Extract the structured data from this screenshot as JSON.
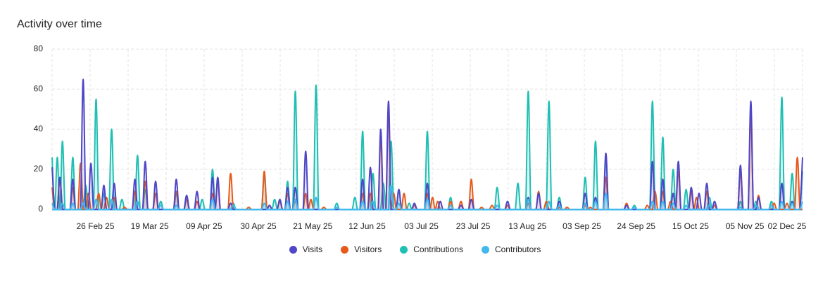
{
  "chart_data": {
    "type": "area",
    "title": "Activity over time",
    "xlabel": "",
    "ylabel": "",
    "ylim": [
      0,
      80
    ],
    "y_ticks": [
      0,
      20,
      40,
      60,
      80
    ],
    "x_tick_labels": [
      "26 Feb 25",
      "19 Mar 25",
      "09 Apr 25",
      "30 Apr 25",
      "21 May 25",
      "12 Jun 25",
      "03 Jul 25",
      "23 Jul 25",
      "13 Aug 25",
      "03 Sep 25",
      "24 Sep 25",
      "15 Oct 25",
      "05 Nov 25",
      "02 Dec 25"
    ],
    "day_range": [
      0,
      290
    ],
    "x_tick_days": [
      14,
      35,
      56,
      77,
      98,
      119,
      140,
      160,
      181,
      202,
      223,
      244,
      265,
      292
    ],
    "legend_position": "bottom",
    "series": [
      {
        "name": "Contributions",
        "color": "#1fbfb3",
        "peaks": [
          [
            0,
            26
          ],
          [
            2,
            26
          ],
          [
            4,
            34
          ],
          [
            8,
            26
          ],
          [
            13,
            12
          ],
          [
            17,
            55
          ],
          [
            20,
            8
          ],
          [
            23,
            40
          ],
          [
            27,
            5
          ],
          [
            33,
            27
          ],
          [
            36,
            10
          ],
          [
            42,
            4
          ],
          [
            48,
            8
          ],
          [
            52,
            7
          ],
          [
            58,
            5
          ],
          [
            62,
            20
          ],
          [
            70,
            3
          ],
          [
            82,
            17
          ],
          [
            86,
            5
          ],
          [
            91,
            14
          ],
          [
            94,
            59
          ],
          [
            102,
            62
          ],
          [
            110,
            3
          ],
          [
            117,
            6
          ],
          [
            120,
            39
          ],
          [
            124,
            18
          ],
          [
            128,
            13
          ],
          [
            131,
            34
          ],
          [
            134,
            10
          ],
          [
            138,
            3
          ],
          [
            145,
            39
          ],
          [
            154,
            6
          ],
          [
            172,
            11
          ],
          [
            180,
            13
          ],
          [
            184,
            59
          ],
          [
            192,
            54
          ],
          [
            196,
            6
          ],
          [
            206,
            16
          ],
          [
            210,
            34
          ],
          [
            214,
            25
          ],
          [
            225,
            2
          ],
          [
            232,
            54
          ],
          [
            236,
            36
          ],
          [
            240,
            20
          ],
          [
            245,
            10
          ],
          [
            254,
            6
          ],
          [
            266,
            4
          ],
          [
            272,
            4
          ],
          [
            278,
            4
          ],
          [
            282,
            56
          ],
          [
            286,
            18
          ],
          [
            290,
            19
          ]
        ]
      },
      {
        "name": "Visitors",
        "color": "#e65a1c",
        "peaks": [
          [
            0,
            11
          ],
          [
            3,
            15
          ],
          [
            8,
            11
          ],
          [
            11,
            23
          ],
          [
            14,
            8
          ],
          [
            18,
            8
          ],
          [
            21,
            6
          ],
          [
            24,
            6
          ],
          [
            28,
            1
          ],
          [
            32,
            9
          ],
          [
            36,
            14
          ],
          [
            40,
            8
          ],
          [
            48,
            9
          ],
          [
            52,
            5
          ],
          [
            56,
            4
          ],
          [
            62,
            8
          ],
          [
            64,
            14
          ],
          [
            69,
            18
          ],
          [
            76,
            1
          ],
          [
            82,
            19
          ],
          [
            84,
            2
          ],
          [
            88,
            4
          ],
          [
            91,
            8
          ],
          [
            94,
            4
          ],
          [
            98,
            8
          ],
          [
            100,
            5
          ],
          [
            105,
            1
          ],
          [
            120,
            8
          ],
          [
            123,
            8
          ],
          [
            127,
            35
          ],
          [
            130,
            48
          ],
          [
            132,
            8
          ],
          [
            136,
            8
          ],
          [
            140,
            2
          ],
          [
            145,
            8
          ],
          [
            147,
            6
          ],
          [
            149,
            4
          ],
          [
            154,
            4
          ],
          [
            158,
            4
          ],
          [
            162,
            15
          ],
          [
            166,
            1
          ],
          [
            170,
            2
          ],
          [
            176,
            2
          ],
          [
            184,
            3
          ],
          [
            188,
            9
          ],
          [
            191,
            4
          ],
          [
            196,
            1
          ],
          [
            199,
            1
          ],
          [
            206,
            2
          ],
          [
            208,
            1
          ],
          [
            214,
            16
          ],
          [
            222,
            3
          ],
          [
            230,
            2
          ],
          [
            233,
            9
          ],
          [
            236,
            9
          ],
          [
            239,
            4
          ],
          [
            242,
            19
          ],
          [
            247,
            9
          ],
          [
            249,
            6
          ],
          [
            253,
            9
          ],
          [
            256,
            2
          ],
          [
            266,
            19
          ],
          [
            270,
            48
          ],
          [
            273,
            7
          ],
          [
            279,
            3
          ],
          [
            284,
            3
          ],
          [
            288,
            26
          ],
          [
            292,
            8
          ]
        ]
      },
      {
        "name": "Visits",
        "color": "#4f46c8",
        "peaks": [
          [
            0,
            21
          ],
          [
            3,
            16
          ],
          [
            8,
            15
          ],
          [
            12,
            65
          ],
          [
            15,
            23
          ],
          [
            20,
            12
          ],
          [
            24,
            13
          ],
          [
            32,
            15
          ],
          [
            36,
            24
          ],
          [
            40,
            14
          ],
          [
            48,
            15
          ],
          [
            52,
            7
          ],
          [
            56,
            9
          ],
          [
            62,
            16
          ],
          [
            64,
            16
          ],
          [
            69,
            3
          ],
          [
            84,
            2
          ],
          [
            88,
            5
          ],
          [
            91,
            11
          ],
          [
            94,
            11
          ],
          [
            98,
            29
          ],
          [
            120,
            15
          ],
          [
            123,
            21
          ],
          [
            127,
            40
          ],
          [
            130,
            54
          ],
          [
            134,
            10
          ],
          [
            140,
            3
          ],
          [
            145,
            13
          ],
          [
            150,
            4
          ],
          [
            158,
            2
          ],
          [
            162,
            5
          ],
          [
            176,
            4
          ],
          [
            184,
            6
          ],
          [
            188,
            8
          ],
          [
            196,
            4
          ],
          [
            206,
            8
          ],
          [
            210,
            6
          ],
          [
            214,
            28
          ],
          [
            222,
            2
          ],
          [
            232,
            24
          ],
          [
            236,
            15
          ],
          [
            240,
            8
          ],
          [
            242,
            24
          ],
          [
            247,
            11
          ],
          [
            250,
            8
          ],
          [
            253,
            13
          ],
          [
            256,
            4
          ],
          [
            266,
            22
          ],
          [
            270,
            54
          ],
          [
            273,
            6
          ],
          [
            282,
            13
          ],
          [
            286,
            4
          ],
          [
            290,
            26
          ],
          [
            292,
            7
          ]
        ]
      },
      {
        "name": "Contributors",
        "color": "#41b8ee",
        "peaks": [
          [
            0,
            3
          ],
          [
            4,
            3
          ],
          [
            8,
            3
          ],
          [
            12,
            3
          ],
          [
            17,
            5
          ],
          [
            23,
            5
          ],
          [
            33,
            4
          ],
          [
            42,
            2
          ],
          [
            48,
            2
          ],
          [
            62,
            5
          ],
          [
            70,
            2
          ],
          [
            82,
            3
          ],
          [
            91,
            4
          ],
          [
            94,
            5
          ],
          [
            102,
            6
          ],
          [
            110,
            1
          ],
          [
            120,
            4
          ],
          [
            124,
            4
          ],
          [
            131,
            12
          ],
          [
            134,
            3
          ],
          [
            145,
            5
          ],
          [
            154,
            2
          ],
          [
            172,
            2
          ],
          [
            184,
            5
          ],
          [
            192,
            4
          ],
          [
            196,
            2
          ],
          [
            206,
            3
          ],
          [
            210,
            4
          ],
          [
            214,
            8
          ],
          [
            225,
            1
          ],
          [
            232,
            4
          ],
          [
            236,
            4
          ],
          [
            240,
            3
          ],
          [
            245,
            2
          ],
          [
            254,
            2
          ],
          [
            266,
            1
          ],
          [
            272,
            2
          ],
          [
            278,
            2
          ],
          [
            282,
            4
          ],
          [
            286,
            3
          ],
          [
            290,
            4
          ]
        ]
      }
    ]
  }
}
